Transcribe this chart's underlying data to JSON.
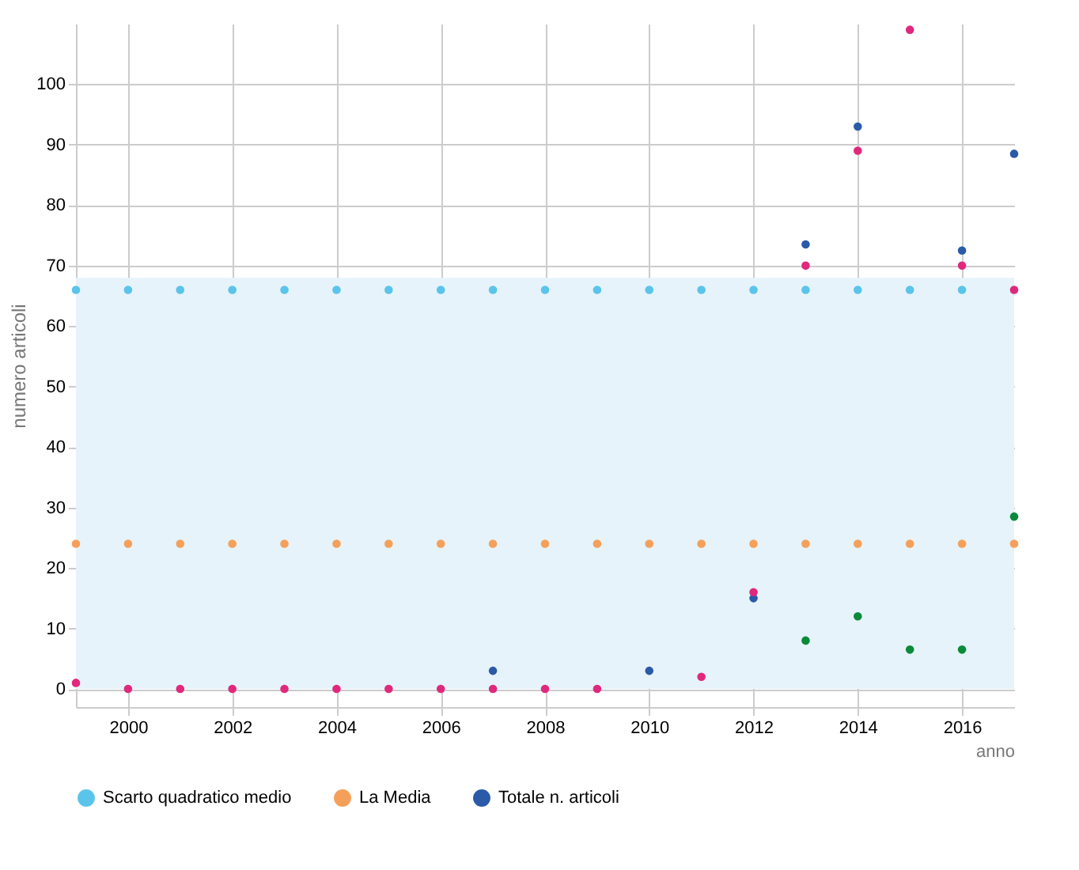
{
  "chart_data": {
    "type": "scatter",
    "xlabel": "anno",
    "ylabel": "numero articoli",
    "xlim": [
      1999,
      2017
    ],
    "xticks": [
      2000,
      2002,
      2004,
      2006,
      2008,
      2010,
      2012,
      2014,
      2016
    ],
    "ylim": [
      -3,
      110
    ],
    "yticks": [
      0,
      10,
      20,
      30,
      40,
      50,
      60,
      70,
      80,
      90,
      100
    ],
    "grid": true,
    "legend": "bottom",
    "marker": "circle",
    "x": [
      1999,
      2000,
      2001,
      2002,
      2003,
      2004,
      2005,
      2006,
      2007,
      2008,
      2009,
      2010,
      2011,
      2012,
      2013,
      2014,
      2015,
      2016,
      2017
    ],
    "bands": [
      {
        "axis": "y",
        "from": 0,
        "to": 68,
        "color": "#e6f3fa"
      }
    ],
    "series": [
      {
        "name": "Scarto quadratico medio",
        "color": "#5bc4ea",
        "values": [
          66,
          66,
          66,
          66,
          66,
          66,
          66,
          66,
          66,
          66,
          66,
          66,
          66,
          66,
          66,
          66,
          66,
          66,
          null
        ]
      },
      {
        "name": "La Media",
        "color": "#f5a05a",
        "values": [
          24,
          24,
          24,
          24,
          24,
          24,
          24,
          24,
          24,
          24,
          24,
          24,
          24,
          24,
          24,
          24,
          24,
          24,
          24
        ]
      },
      {
        "name": "Totale n. articoli",
        "color": "#2a5aa8",
        "values": [
          null,
          null,
          null,
          null,
          null,
          null,
          null,
          null,
          3,
          null,
          null,
          3,
          null,
          15,
          73.5,
          93,
          null,
          72.5,
          88.5
        ]
      },
      {
        "color": "#0b8a3a",
        "values": [
          null,
          null,
          null,
          null,
          null,
          null,
          null,
          null,
          null,
          null,
          null,
          null,
          null,
          null,
          8,
          12,
          6.5,
          6.5,
          28.5
        ]
      },
      {
        "color": "#e0287d",
        "values": [
          1,
          0,
          0,
          0,
          0,
          0,
          0,
          0,
          0,
          0,
          0,
          null,
          2,
          16,
          70,
          89,
          109,
          70,
          66
        ]
      }
    ]
  }
}
